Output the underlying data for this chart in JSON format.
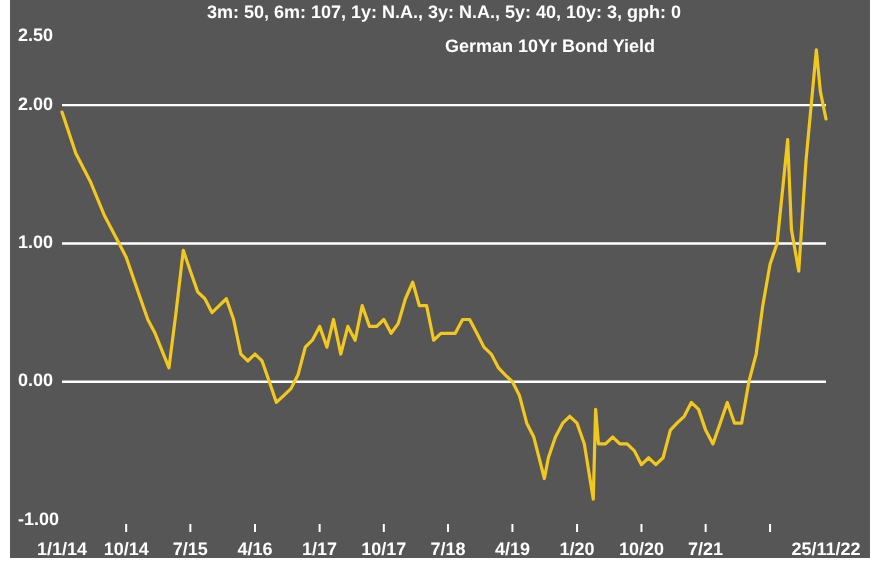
{
  "chart_data": {
    "type": "line",
    "title": "German 10Yr Bond Yield",
    "subtitle": "3m: 50,   6m: 107,   1y: N.A.,   3y: N.A.,   5y: 40,   10y: 3,   gph: 0",
    "x": [
      "2014-01-01",
      "2014-03-01",
      "2014-05-01",
      "2014-07-01",
      "2014-09-01",
      "2014-10-01",
      "2014-12-01",
      "2015-01-01",
      "2015-02-01",
      "2015-04-01",
      "2015-05-01",
      "2015-06-01",
      "2015-07-01",
      "2015-08-01",
      "2015-09-01",
      "2015-10-01",
      "2015-11-01",
      "2015-12-01",
      "2016-01-01",
      "2016-02-01",
      "2016-03-01",
      "2016-04-01",
      "2016-05-01",
      "2016-06-01",
      "2016-07-01",
      "2016-08-01",
      "2016-09-01",
      "2016-10-01",
      "2016-11-01",
      "2016-12-01",
      "2017-01-01",
      "2017-02-01",
      "2017-03-01",
      "2017-04-01",
      "2017-05-01",
      "2017-06-01",
      "2017-07-01",
      "2017-08-01",
      "2017-09-01",
      "2017-10-01",
      "2017-11-01",
      "2017-12-01",
      "2018-01-01",
      "2018-02-01",
      "2018-03-01",
      "2018-04-01",
      "2018-05-01",
      "2018-06-01",
      "2018-07-01",
      "2018-08-01",
      "2018-09-01",
      "2018-10-01",
      "2018-11-01",
      "2018-12-01",
      "2019-01-01",
      "2019-02-01",
      "2019-03-01",
      "2019-04-01",
      "2019-05-01",
      "2019-06-01",
      "2019-07-01",
      "2019-08-15",
      "2019-09-01",
      "2019-10-01",
      "2019-11-01",
      "2019-12-01",
      "2020-01-01",
      "2020-02-01",
      "2020-03-10",
      "2020-03-20",
      "2020-04-01",
      "2020-05-01",
      "2020-06-01",
      "2020-07-01",
      "2020-08-01",
      "2020-09-01",
      "2020-10-01",
      "2020-11-01",
      "2020-12-01",
      "2021-01-01",
      "2021-02-01",
      "2021-03-01",
      "2021-04-01",
      "2021-05-01",
      "2021-06-01",
      "2021-07-01",
      "2021-08-01",
      "2021-09-01",
      "2021-10-01",
      "2021-11-01",
      "2021-12-01",
      "2022-01-01",
      "2022-02-01",
      "2022-03-01",
      "2022-04-01",
      "2022-05-01",
      "2022-06-15",
      "2022-07-01",
      "2022-08-01",
      "2022-09-01",
      "2022-10-15",
      "2022-11-01",
      "2022-11-25"
    ],
    "series": [
      {
        "color": "#f2c81e",
        "values": [
          1.95,
          1.65,
          1.45,
          1.2,
          1.0,
          0.9,
          0.6,
          0.45,
          0.35,
          0.1,
          0.5,
          0.95,
          0.8,
          0.65,
          0.6,
          0.5,
          0.55,
          0.6,
          0.45,
          0.2,
          0.15,
          0.2,
          0.15,
          0.0,
          -0.15,
          -0.1,
          -0.05,
          0.05,
          0.25,
          0.3,
          0.4,
          0.25,
          0.45,
          0.2,
          0.4,
          0.3,
          0.55,
          0.4,
          0.4,
          0.45,
          0.35,
          0.42,
          0.6,
          0.72,
          0.55,
          0.55,
          0.3,
          0.35,
          0.35,
          0.35,
          0.45,
          0.45,
          0.35,
          0.25,
          0.2,
          0.1,
          0.05,
          0.0,
          -0.1,
          -0.3,
          -0.4,
          -0.7,
          -0.55,
          -0.4,
          -0.3,
          -0.25,
          -0.3,
          -0.45,
          -0.85,
          -0.2,
          -0.45,
          -0.45,
          -0.4,
          -0.45,
          -0.45,
          -0.5,
          -0.6,
          -0.55,
          -0.6,
          -0.55,
          -0.35,
          -0.3,
          -0.25,
          -0.15,
          -0.2,
          -0.35,
          -0.45,
          -0.3,
          -0.15,
          -0.3,
          -0.3,
          0.0,
          0.2,
          0.55,
          0.85,
          1.0,
          1.75,
          1.1,
          0.8,
          1.6,
          2.4,
          2.1,
          1.9
        ]
      }
    ],
    "xlim": [
      "2014-01-01",
      "2022-11-25"
    ],
    "xticks": [
      {
        "value": "2014-01-01",
        "label": "1/1/14"
      },
      {
        "value": "2014-10-01",
        "label": "10/14"
      },
      {
        "value": "2015-07-01",
        "label": "7/15"
      },
      {
        "value": "2016-04-01",
        "label": "4/16"
      },
      {
        "value": "2017-01-01",
        "label": "1/17"
      },
      {
        "value": "2017-10-01",
        "label": "10/17"
      },
      {
        "value": "2018-07-01",
        "label": "7/18"
      },
      {
        "value": "2019-04-01",
        "label": "4/19"
      },
      {
        "value": "2020-01-01",
        "label": "1/20"
      },
      {
        "value": "2020-10-01",
        "label": "10/20"
      },
      {
        "value": "2021-07-01",
        "label": "7/21"
      },
      {
        "value": "2022-04-01",
        "label": null
      },
      {
        "value": "2022-11-25",
        "label": "25/11/22"
      }
    ],
    "ylim": [
      -1,
      2.5
    ],
    "yticks": [
      {
        "value": -1,
        "label": "-1.00"
      },
      {
        "value": 0,
        "label": "0.00"
      },
      {
        "value": 1,
        "label": "1.00"
      },
      {
        "value": 2,
        "label": "2.00"
      },
      {
        "value": 2.5,
        "label": "2.50"
      }
    ],
    "grid": "y"
  }
}
